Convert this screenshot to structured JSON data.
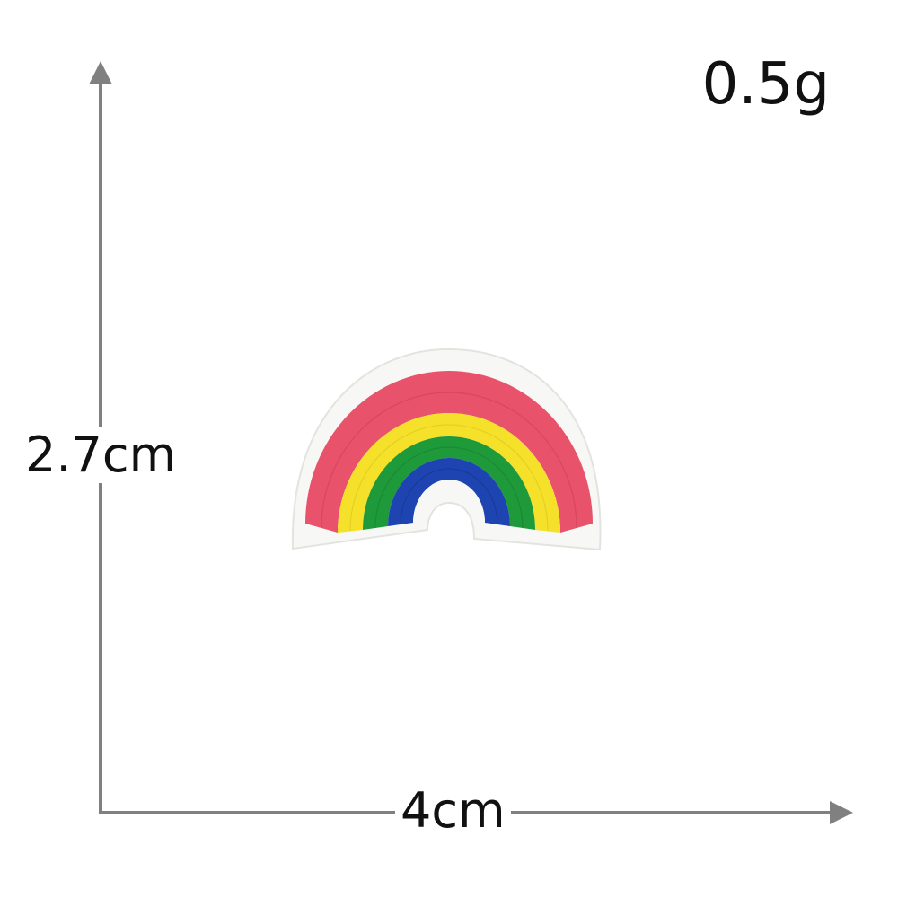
{
  "product": {
    "name_icon": "rainbow-embroidered-patch",
    "weight": "0.5g",
    "height": "2.7cm",
    "width": "4cm"
  },
  "colors": {
    "background": "#ffffff",
    "axis": "#808080",
    "felt_border": "#f6f6f4",
    "band_red": "#e8526a",
    "band_yellow": "#f5e02a",
    "band_green": "#1f9a3a",
    "band_blue": "#1d44b0"
  }
}
